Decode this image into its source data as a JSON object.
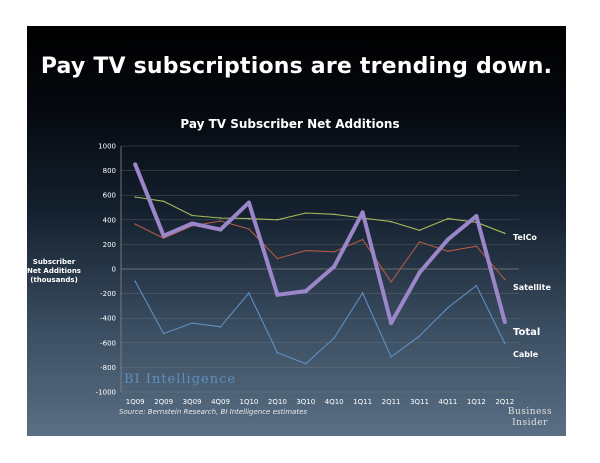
{
  "headline": "Pay TV subscriptions are trending down.",
  "source": "Source: Bernstein Research, BI Intelligence estimates",
  "watermark": "BI Intelligence",
  "brand": {
    "line1": "Business",
    "line2": "Insider"
  },
  "colors": {
    "telco": "#a6b85a",
    "satellite": "#b05a45",
    "cable": "#5f8fc0",
    "total": "#9b86c9",
    "axis": "#888888"
  },
  "chart_data": {
    "type": "line",
    "title": "Pay TV Subscriber Net Additions",
    "ylabel": "Subscriber Net Additions (thousands)",
    "xlabel": "",
    "ylim": [
      -1000,
      1000
    ],
    "yticks": [
      1000,
      800,
      600,
      400,
      200,
      0,
      -200,
      -400,
      -600,
      -800,
      -1000
    ],
    "grid": true,
    "categories": [
      "1Q09",
      "2Q09",
      "3Q09",
      "4Q09",
      "1Q10",
      "2Q10",
      "3Q10",
      "4Q10",
      "1Q11",
      "2Q11",
      "3Q11",
      "4Q11",
      "1Q12",
      "2Q12"
    ],
    "series": [
      {
        "name": "TelCo",
        "key": "telco",
        "values": [
          585,
          550,
          435,
          415,
          410,
          400,
          455,
          445,
          415,
          385,
          315,
          410,
          380,
          290
        ]
      },
      {
        "name": "Satellite",
        "key": "satellite",
        "values": [
          365,
          250,
          350,
          390,
          325,
          85,
          150,
          140,
          240,
          -105,
          220,
          145,
          185,
          -85
        ]
      },
      {
        "name": "Cable",
        "key": "cable",
        "values": [
          -100,
          -525,
          -440,
          -470,
          -195,
          -680,
          -770,
          -560,
          -195,
          -715,
          -545,
          -315,
          -135,
          -605
        ]
      },
      {
        "name": "Total",
        "key": "total",
        "values": [
          850,
          270,
          370,
          320,
          540,
          -210,
          -180,
          20,
          460,
          -440,
          -30,
          240,
          430,
          -430
        ]
      }
    ]
  }
}
